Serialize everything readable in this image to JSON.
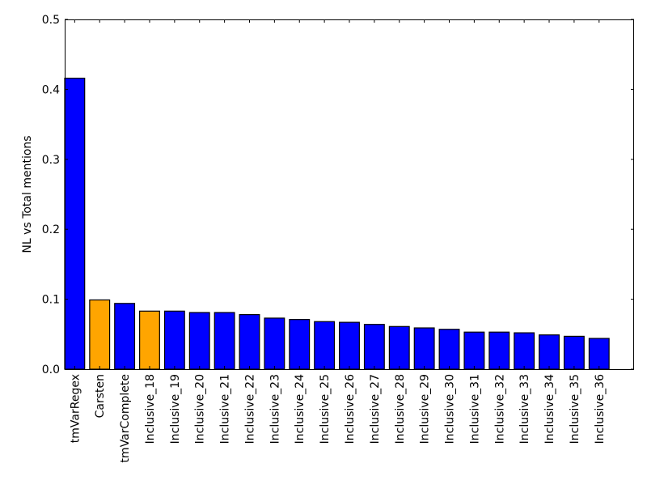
{
  "chart_data": {
    "type": "bar",
    "title": "",
    "xlabel": "",
    "ylabel": "NL vs Total mentions",
    "ylim": [
      0,
      0.5
    ],
    "yticks": [
      "0.0",
      "0.1",
      "0.2",
      "0.3",
      "0.4",
      "0.5"
    ],
    "grid": false,
    "categories": [
      "tmVarRegex",
      "Carsten",
      "tmVarComplete",
      "Inclusive_18",
      "Inclusive_19",
      "Inclusive_20",
      "Inclusive_21",
      "Inclusive_22",
      "Inclusive_23",
      "Inclusive_24",
      "Inclusive_25",
      "Inclusive_26",
      "Inclusive_27",
      "Inclusive_28",
      "Inclusive_29",
      "Inclusive_30",
      "Inclusive_31",
      "Inclusive_32",
      "Inclusive_33",
      "Inclusive_34",
      "Inclusive_35",
      "Inclusive_36"
    ],
    "values": [
      0.416,
      0.099,
      0.094,
      0.083,
      0.083,
      0.081,
      0.081,
      0.078,
      0.073,
      0.071,
      0.068,
      0.067,
      0.064,
      0.061,
      0.059,
      0.057,
      0.053,
      0.053,
      0.052,
      0.049,
      0.047,
      0.044
    ],
    "bar_colors": [
      "#0000ff",
      "#ffa500",
      "#0000ff",
      "#ffa500",
      "#0000ff",
      "#0000ff",
      "#0000ff",
      "#0000ff",
      "#0000ff",
      "#0000ff",
      "#0000ff",
      "#0000ff",
      "#0000ff",
      "#0000ff",
      "#0000ff",
      "#0000ff",
      "#0000ff",
      "#0000ff",
      "#0000ff",
      "#0000ff",
      "#0000ff",
      "#0000ff"
    ]
  }
}
